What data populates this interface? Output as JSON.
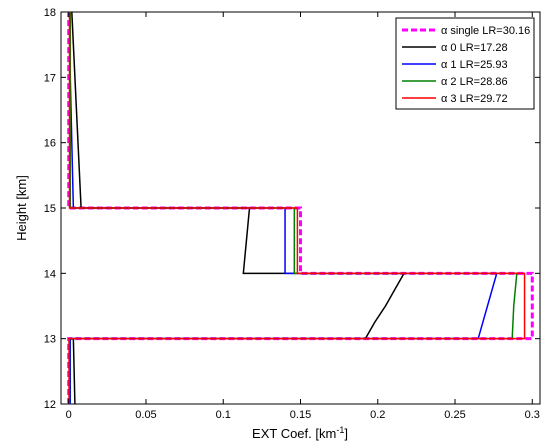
{
  "chart_data": {
    "type": "line",
    "title": "",
    "xlabel": "EXT Coef. [km",
    "xlabel_sup": "-1",
    "xlabel_suffix": "]",
    "ylabel": "Height [km]",
    "xlim": [
      -0.005,
      0.305
    ],
    "ylim": [
      12,
      18
    ],
    "xticks": [
      0,
      0.05,
      0.1,
      0.15,
      0.2,
      0.25,
      0.3
    ],
    "xtick_labels": [
      "0",
      "0.05",
      "0.1",
      "0.15",
      "0.2",
      "0.25",
      "0.3"
    ],
    "yticks": [
      12,
      13,
      14,
      15,
      16,
      17,
      18
    ],
    "ytick_labels": [
      "12",
      "13",
      "14",
      "15",
      "16",
      "17",
      "18"
    ],
    "grid": false,
    "legend_position": "top-right",
    "series": [
      {
        "name": "α single LR=30.16",
        "color": "#ff00ff",
        "dashed": true,
        "points": [
          [
            0,
            12
          ],
          [
            0,
            13
          ],
          [
            0.3,
            13
          ],
          [
            0.3,
            14
          ],
          [
            0.15,
            14
          ],
          [
            0.15,
            15
          ],
          [
            0,
            15
          ],
          [
            0,
            18
          ]
        ]
      },
      {
        "name": "α 0 LR=17.28",
        "color": "#000000",
        "dashed": false,
        "points": [
          [
            0.004,
            12
          ],
          [
            0.003,
            13
          ],
          [
            0.192,
            13
          ],
          [
            0.198,
            13.25
          ],
          [
            0.205,
            13.5
          ],
          [
            0.211,
            13.75
          ],
          [
            0.217,
            14
          ],
          [
            0.113,
            14
          ],
          [
            0.114,
            14.25
          ],
          [
            0.115,
            14.5
          ],
          [
            0.116,
            14.75
          ],
          [
            0.117,
            15
          ],
          [
            0.008,
            15
          ],
          [
            0.006,
            16
          ],
          [
            0.004,
            17
          ],
          [
            0.002,
            18
          ]
        ]
      },
      {
        "name": "α 1 LR=25.93",
        "color": "#0000ff",
        "dashed": false,
        "points": [
          [
            0.001,
            12
          ],
          [
            0.001,
            13
          ],
          [
            0.265,
            13
          ],
          [
            0.268,
            13.25
          ],
          [
            0.271,
            13.5
          ],
          [
            0.274,
            13.75
          ],
          [
            0.277,
            14
          ],
          [
            0.14,
            14
          ],
          [
            0.14,
            14.5
          ],
          [
            0.14,
            15
          ],
          [
            0.003,
            15
          ],
          [
            0.002,
            16
          ],
          [
            0.001,
            17
          ],
          [
            0.001,
            18
          ]
        ]
      },
      {
        "name": "α 2 LR=28.86",
        "color": "#008000",
        "dashed": false,
        "points": [
          [
            0.0005,
            12
          ],
          [
            0.0005,
            13
          ],
          [
            0.287,
            13
          ],
          [
            0.288,
            13.5
          ],
          [
            0.29,
            14
          ],
          [
            0.146,
            14
          ],
          [
            0.146,
            15
          ],
          [
            0.001,
            15
          ],
          [
            0.001,
            18
          ]
        ]
      },
      {
        "name": "α 3 LR=29.72",
        "color": "#ff0000",
        "dashed": false,
        "points": [
          [
            0.0002,
            12
          ],
          [
            0.0002,
            13
          ],
          [
            0.295,
            13
          ],
          [
            0.295,
            14
          ],
          [
            0.148,
            14
          ],
          [
            0.148,
            15
          ],
          [
            0.0005,
            15
          ],
          [
            0.0005,
            18
          ]
        ]
      }
    ]
  }
}
